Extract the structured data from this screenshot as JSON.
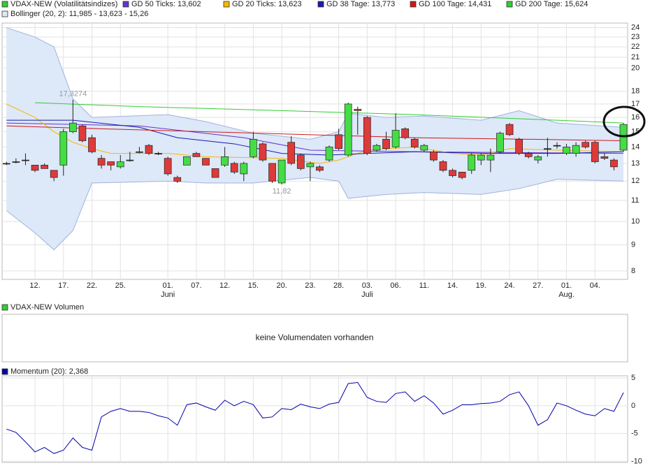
{
  "chart_data": [
    {
      "type": "candlestick",
      "name": "VDAX-NEW (Volatilitätsindizes)",
      "color": "#33cc33",
      "up_color": "#44dd44",
      "down_color": "#dd3a3a",
      "log_scale": true,
      "grid": true,
      "categories": [
        null,
        null,
        null,
        "12.",
        null,
        null,
        "17.",
        null,
        null,
        "22.",
        null,
        null,
        "25.",
        null,
        null,
        null,
        null,
        "01.",
        null,
        null,
        "07.",
        null,
        null,
        "12.",
        null,
        null,
        "15.",
        null,
        null,
        "20.",
        null,
        null,
        "23.",
        null,
        null,
        "28.",
        null,
        null,
        "03.",
        null,
        null,
        "06.",
        null,
        null,
        "11.",
        null,
        null,
        "14.",
        null,
        null,
        "19.",
        null,
        null,
        "24.",
        null,
        null,
        "27.",
        null,
        null,
        "01.",
        null,
        null,
        "04.",
        null,
        null,
        null
      ],
      "months": [
        null,
        null,
        null,
        null,
        null,
        null,
        null,
        null,
        null,
        null,
        null,
        null,
        null,
        null,
        null,
        null,
        null,
        "Juni",
        null,
        null,
        null,
        null,
        null,
        null,
        null,
        null,
        null,
        null,
        null,
        null,
        null,
        null,
        null,
        null,
        null,
        null,
        null,
        null,
        "Juli",
        null,
        null,
        null,
        null,
        null,
        null,
        null,
        null,
        null,
        null,
        null,
        null,
        null,
        null,
        null,
        null,
        null,
        null,
        null,
        null,
        "Aug.",
        null,
        null,
        null,
        null,
        null,
        null
      ],
      "open": [
        13.0,
        13.1,
        13.2,
        12.9,
        12.9,
        12.6,
        12.9,
        15.0,
        15.4,
        14.6,
        13.3,
        13.1,
        12.8,
        13.2,
        13.7,
        14.1,
        13.6,
        13.3,
        12.2,
        12.9,
        13.6,
        13.3,
        12.7,
        12.9,
        13.0,
        12.4,
        13.4,
        14.2,
        13.0,
        11.9,
        14.3,
        13.5,
        12.8,
        12.8,
        13.2,
        14.8,
        13.5,
        16.6,
        16.0,
        13.8,
        14.5,
        14.0,
        15.2,
        14.5,
        13.8,
        13.7,
        13.1,
        12.6,
        12.5,
        12.6,
        13.2,
        13.2,
        13.7,
        15.5,
        14.5,
        13.6,
        13.2,
        13.9,
        14.1,
        13.6,
        13.6,
        14.3,
        14.3,
        13.4,
        13.2,
        13.8
      ],
      "high": [
        13.1,
        13.3,
        13.6,
        12.9,
        13.0,
        12.6,
        15.2,
        17.3274,
        15.5,
        14.8,
        13.5,
        13.1,
        13.5,
        13.7,
        14.0,
        14.2,
        13.7,
        13.4,
        12.3,
        13.4,
        13.7,
        13.3,
        12.7,
        14.0,
        13.1,
        13.1,
        15.0,
        14.3,
        13.0,
        13.2,
        14.7,
        13.6,
        13.1,
        12.9,
        14.1,
        15.2,
        17.1,
        16.8,
        16.1,
        14.2,
        15.0,
        16.3,
        15.3,
        14.6,
        14.2,
        13.8,
        13.2,
        12.7,
        12.5,
        13.6,
        13.6,
        13.9,
        15.0,
        15.6,
        14.6,
        13.7,
        13.5,
        14.6,
        14.3,
        14.2,
        14.3,
        14.4,
        14.4,
        13.6,
        13.3,
        15.6
      ],
      "low": [
        12.9,
        13.0,
        12.9,
        12.5,
        12.7,
        12.0,
        12.3,
        14.9,
        14.3,
        13.6,
        12.7,
        12.6,
        12.7,
        13.1,
        13.6,
        13.5,
        13.5,
        12.3,
        11.9,
        12.9,
        13.4,
        12.9,
        12.2,
        12.8,
        12.4,
        12.0,
        13.3,
        13.1,
        11.9,
        11.82,
        12.9,
        12.6,
        12.0,
        12.5,
        13.1,
        13.8,
        13.4,
        14.8,
        13.5,
        13.7,
        13.8,
        13.9,
        14.5,
        13.9,
        13.7,
        13.1,
        12.5,
        12.2,
        12.1,
        12.4,
        12.9,
        12.5,
        13.6,
        14.7,
        13.5,
        13.3,
        13.0,
        13.4,
        13.9,
        13.5,
        13.4,
        13.9,
        13.0,
        13.2,
        12.6,
        13.7
      ],
      "close": [
        13.0,
        13.1,
        13.2,
        12.6,
        12.7,
        12.2,
        15.0,
        15.6,
        14.4,
        13.7,
        12.9,
        12.9,
        13.1,
        13.2,
        13.7,
        13.6,
        13.6,
        12.4,
        12.0,
        13.4,
        13.4,
        12.9,
        12.2,
        13.4,
        12.5,
        13.0,
        14.5,
        13.2,
        12.0,
        13.2,
        13.0,
        12.7,
        13.0,
        12.6,
        14.0,
        13.9,
        17.0,
        16.5,
        13.6,
        14.1,
        13.9,
        15.1,
        14.6,
        14.0,
        14.1,
        13.2,
        12.6,
        12.3,
        12.2,
        13.5,
        13.5,
        13.5,
        14.9,
        14.8,
        13.6,
        13.4,
        13.4,
        13.9,
        14.1,
        14.0,
        14.1,
        14.0,
        13.1,
        13.3,
        12.8,
        15.5
      ],
      "ylim": [
        7.7,
        24.5
      ],
      "yticks": [
        8,
        9,
        10,
        11,
        12,
        13,
        14,
        15,
        16,
        17,
        18,
        20,
        21,
        22,
        23,
        24
      ],
      "bollinger": {
        "name": "Bollinger (20, 2): 11,985 - 13,623 - 15,26",
        "color": "#9fb3dc",
        "fill": "#dde8f8",
        "x": [
          0,
          3,
          5,
          7,
          9,
          17,
          21,
          26,
          32,
          35,
          36,
          40,
          44,
          50,
          54,
          58,
          65
        ],
        "upper": [
          24.0,
          23.0,
          22.0,
          17.4,
          16.0,
          16.2,
          15.7,
          14.9,
          14.5,
          15.0,
          16.3,
          16.0,
          16.1,
          15.8,
          16.5,
          15.6,
          15.3
        ],
        "lower": [
          10.5,
          9.5,
          8.8,
          9.6,
          11.9,
          12.0,
          11.9,
          11.9,
          12.2,
          12.0,
          11.1,
          11.3,
          11.4,
          11.3,
          11.6,
          12.1,
          12.0
        ]
      },
      "lines": [
        {
          "name": "GD 50 Ticks: 13,602",
          "color": "#6633cc",
          "x": [
            0,
            14,
            25,
            32,
            43,
            65
          ],
          "values": [
            15.6,
            15.4,
            14.6,
            13.8,
            13.7,
            13.6
          ]
        },
        {
          "name": "GD 20 Ticks: 13,623",
          "color": "#f5b800",
          "x": [
            0,
            3,
            5,
            7,
            9,
            11,
            17,
            21,
            29,
            33,
            35,
            38,
            43,
            47,
            50,
            53,
            58,
            65
          ],
          "values": [
            17.0,
            16.0,
            15.0,
            14.3,
            13.9,
            13.6,
            13.6,
            13.4,
            13.3,
            13.0,
            13.2,
            13.8,
            14.0,
            13.6,
            13.5,
            13.9,
            13.8,
            13.7
          ]
        },
        {
          "name": "GD 38 Tage: 13,773",
          "color": "#1a1aaa",
          "x": [
            0,
            7,
            14,
            18,
            24,
            29,
            34,
            38,
            43,
            51,
            58,
            65
          ],
          "values": [
            15.8,
            15.8,
            15.3,
            14.6,
            14.2,
            13.6,
            13.5,
            13.6,
            13.7,
            13.6,
            13.6,
            13.7
          ]
        },
        {
          "name": "GD 100 Tage: 14,431",
          "color": "#cc1a1a",
          "x": [
            0,
            10,
            21,
            32,
            43,
            55,
            65
          ],
          "values": [
            15.4,
            15.2,
            15.0,
            14.8,
            14.6,
            14.5,
            14.4
          ]
        },
        {
          "name": "GD 200 Tage: 15,624",
          "color": "#33cc33",
          "x": [
            3,
            14,
            29,
            43,
            58,
            65
          ],
          "values": [
            17.1,
            16.8,
            16.5,
            16.2,
            15.8,
            15.6
          ]
        }
      ],
      "annotations": [
        {
          "text": "17,3274",
          "index": 7,
          "value": 17.3274
        },
        {
          "text": "11,82",
          "index": 29,
          "value": 11.82
        }
      ]
    },
    {
      "type": "empty",
      "name": "VDAX-NEW Volumen",
      "color": "#33cc33",
      "message": "keine Volumendaten vorhanden"
    },
    {
      "type": "line",
      "name": "Momentum (20): 2,368",
      "color": "#0000aa",
      "values": [
        -4.2,
        -4.8,
        -6.5,
        -8.3,
        -7.5,
        -8.6,
        -8.0,
        -5.8,
        -7.5,
        -8.0,
        -2.0,
        -1.0,
        -0.5,
        -1.0,
        -1.0,
        -1.2,
        -1.8,
        -2.2,
        -3.5,
        0.2,
        0.5,
        -0.2,
        -0.8,
        1.0,
        0.0,
        0.8,
        0.2,
        -2.2,
        -2.0,
        -0.5,
        -0.7,
        0.3,
        -0.2,
        -0.5,
        0.3,
        0.6,
        4.0,
        4.2,
        1.5,
        0.8,
        0.6,
        2.2,
        2.5,
        0.8,
        1.8,
        0.5,
        -1.5,
        -0.8,
        0.2,
        0.2,
        0.4,
        0.5,
        0.8,
        2.0,
        2.5,
        0.0,
        -3.5,
        -2.5,
        0.5,
        0.0,
        -0.8,
        -1.5,
        -1.8,
        -0.5,
        -1.0,
        2.368
      ],
      "ylim": [
        -10.2,
        5.4
      ],
      "yticks": [
        -10,
        -5,
        0,
        5
      ],
      "grid": true
    }
  ]
}
